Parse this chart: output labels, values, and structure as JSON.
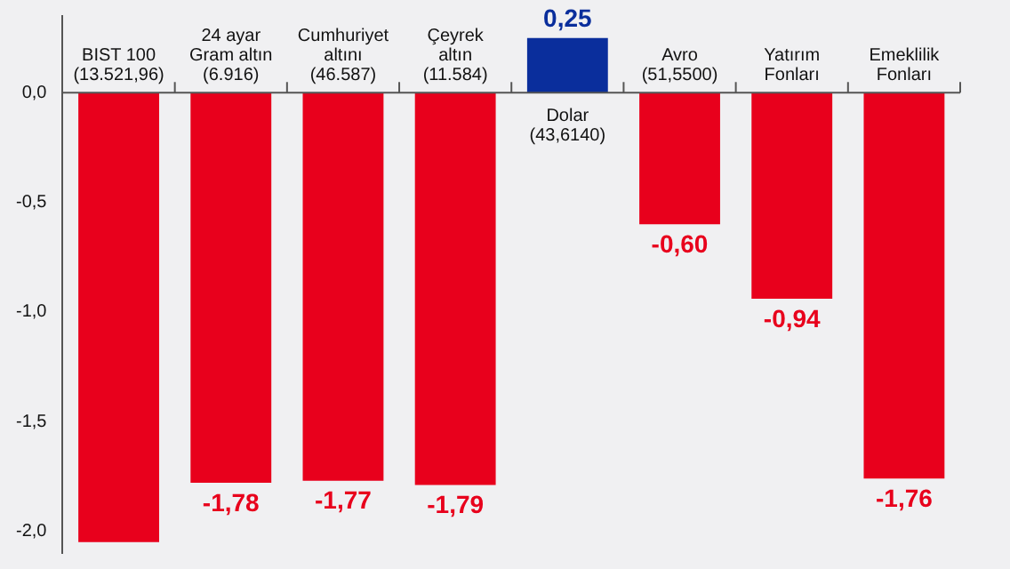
{
  "chart_data": {
    "type": "bar",
    "categories": [
      "BIST 100\n(13.521,96)",
      "24 ayar\nGram altın\n(6.916)",
      "Cumhuriyet\naltını\n(46.587)",
      "Çeyrek\naltın\n(11.584)",
      "Dolar\n(43,6140)",
      "Avro\n(51,5500)",
      "Yatırım\nFonları",
      "Emeklilik\nFonları"
    ],
    "values": [
      -2.05,
      -1.78,
      -1.77,
      -1.79,
      0.25,
      -0.6,
      -0.94,
      -1.76
    ],
    "colors": [
      "#e8001c",
      "#e8001c",
      "#e8001c",
      "#e8001c",
      "#0a2e9c",
      "#e8001c",
      "#e8001c",
      "#e8001c"
    ],
    "value_labels": [
      null,
      "-1,78",
      "-1,77",
      "-1,79",
      "0,25",
      "-0,60",
      "-0,94",
      "-1,76"
    ],
    "ylim": [
      -2.1,
      0.35
    ],
    "yticks": [
      {
        "value": 0,
        "label": "0,0"
      },
      {
        "value": -0.5,
        "label": "-0,5"
      },
      {
        "value": -1,
        "label": "-1,0"
      },
      {
        "value": -1.5,
        "label": "-1,5"
      },
      {
        "value": -2,
        "label": "-2,0"
      }
    ],
    "grid": false,
    "legend": false
  }
}
